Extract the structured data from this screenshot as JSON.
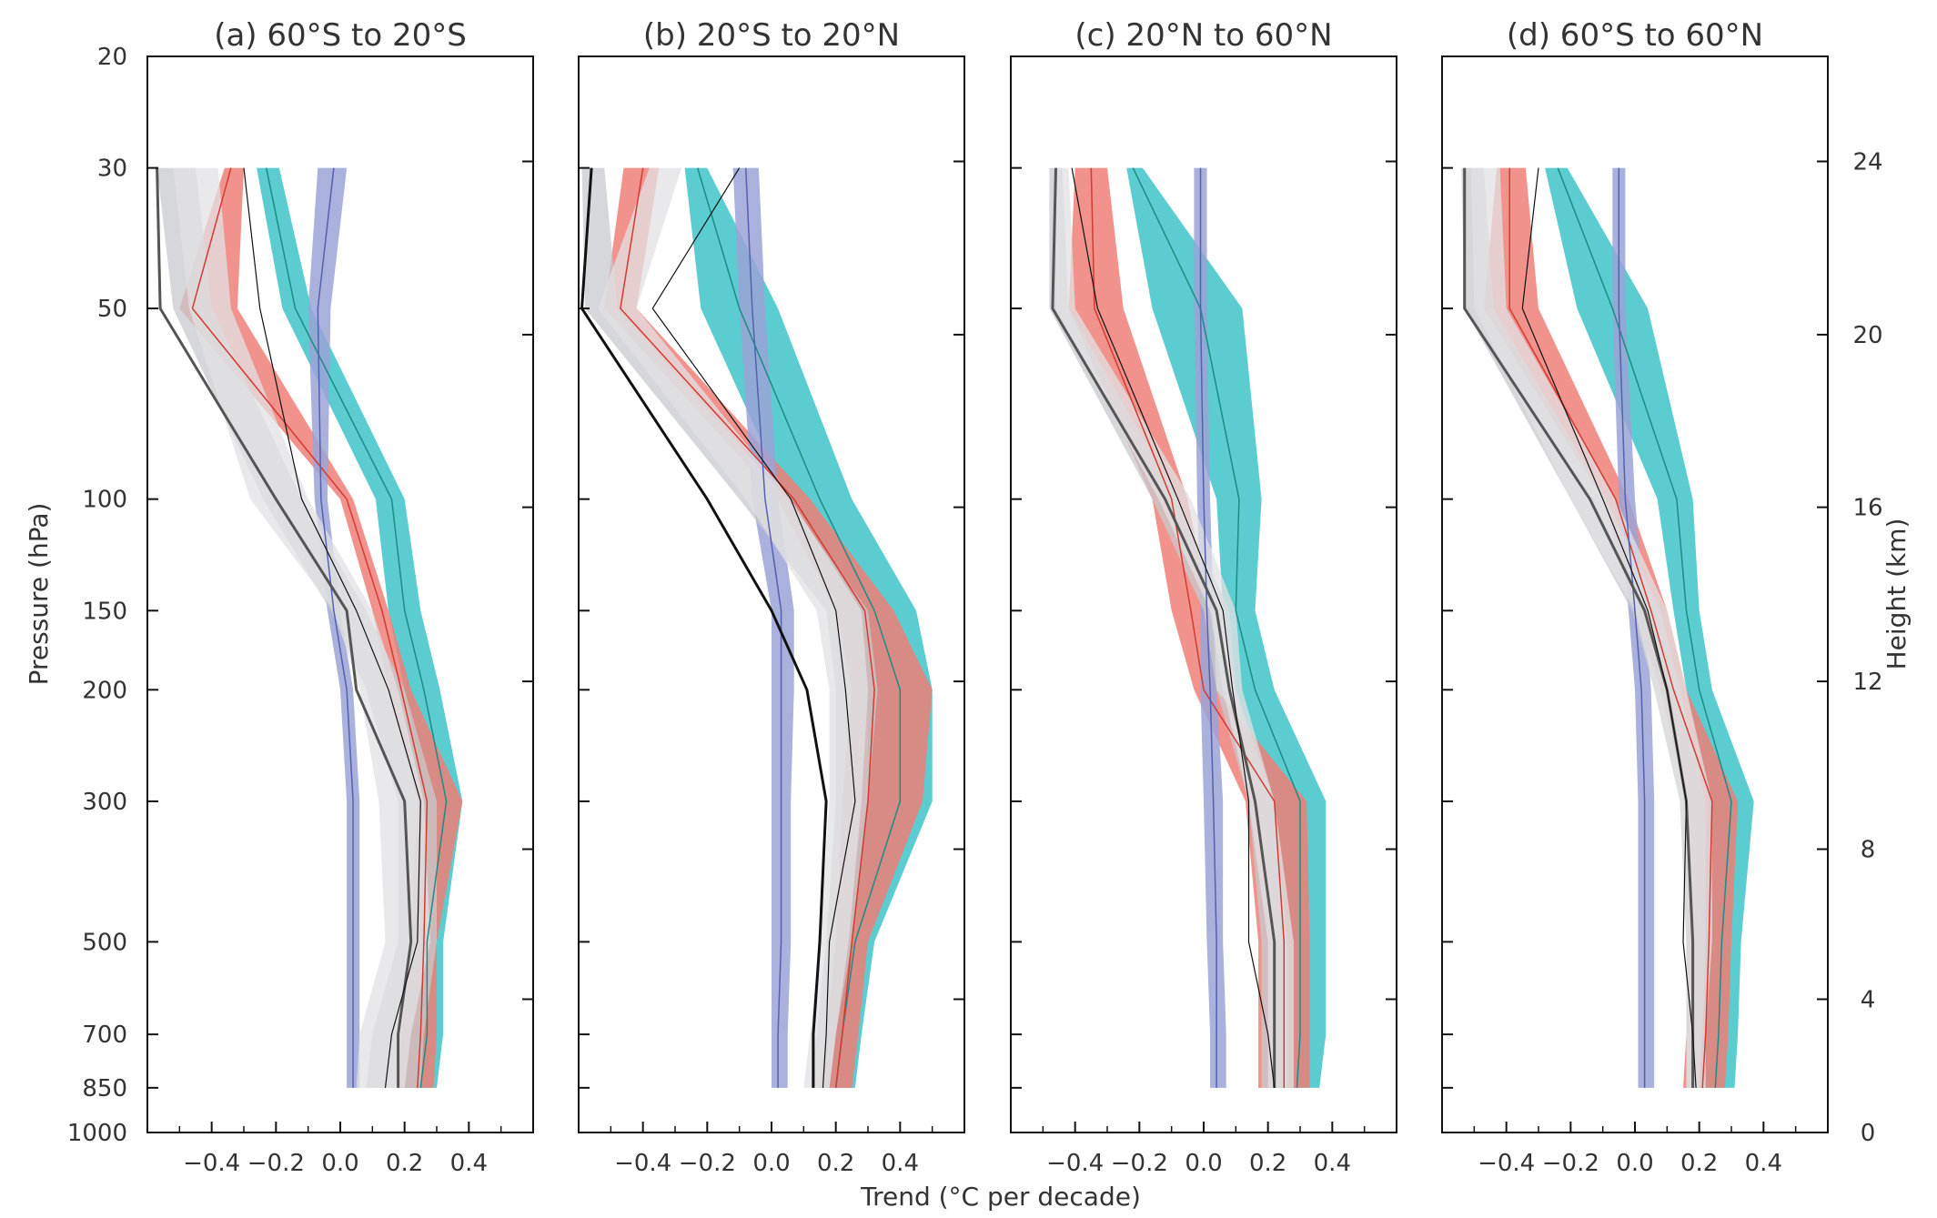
{
  "figure": {
    "xlabel": "Trend (°C per decade)",
    "ylabel": "Pressure (hPa)",
    "y2label": "Height (km)"
  },
  "colors": {
    "teal": "#3ec3c7",
    "teal_line": "#1b8c84",
    "red": "#ee7f78",
    "red_line": "#d23a32",
    "blue": "#9aa3d6",
    "blue_line": "#5561b0",
    "gray_band": "#c8c9cd",
    "light_band": "#e2e2e4",
    "dark_gray": "#555555",
    "black": "#111111"
  },
  "chart_data": [
    {
      "type": "line",
      "title": "(a) 60°S to 20°S",
      "xlabel": "Trend (°C per decade)",
      "ylabel": "Pressure (hPa)",
      "xlim": [
        -0.6,
        0.6
      ],
      "xticks": [
        "−0.4",
        "−0.2",
        "0.0",
        "0.2",
        "0.4"
      ],
      "y_scale": "log",
      "ylim": [
        1000,
        20
      ],
      "yticks": [
        20,
        30,
        50,
        100,
        150,
        200,
        300,
        500,
        700,
        850,
        1000
      ],
      "levels": [
        30,
        50,
        100,
        150,
        200,
        300,
        500,
        700,
        850
      ],
      "bands": [
        {
          "color": "teal",
          "low": [
            -0.26,
            -0.18,
            0.11,
            0.15,
            0.2,
            0.27,
            0.22,
            0.22,
            0.2
          ],
          "high": [
            -0.19,
            -0.09,
            0.2,
            0.25,
            0.31,
            0.38,
            0.32,
            0.32,
            0.3
          ]
        },
        {
          "color": "red",
          "low": [
            -0.36,
            -0.5,
            0.0,
            0.1,
            0.15,
            0.24,
            0.22,
            0.19,
            0.18
          ],
          "high": [
            -0.3,
            -0.32,
            0.04,
            0.15,
            0.22,
            0.38,
            0.3,
            0.3,
            0.29
          ]
        },
        {
          "color": "blue",
          "low": [
            -0.07,
            -0.1,
            -0.08,
            -0.04,
            0.0,
            0.02,
            0.02,
            0.02,
            0.02
          ],
          "high": [
            0.02,
            -0.03,
            -0.04,
            0.0,
            0.04,
            0.06,
            0.06,
            0.06,
            0.06
          ]
        },
        {
          "color": "gray_band",
          "low": [
            -0.57,
            -0.52,
            -0.24,
            -0.03,
            0.08,
            0.18,
            0.18,
            0.1,
            0.08
          ],
          "high": [
            -0.45,
            -0.4,
            -0.12,
            0.08,
            0.2,
            0.3,
            0.3,
            0.26,
            0.25
          ]
        },
        {
          "color": "light_band",
          "low": [
            -0.52,
            -0.47,
            -0.28,
            -0.02,
            0.06,
            0.12,
            0.14,
            0.06,
            0.05
          ],
          "high": [
            -0.38,
            -0.34,
            -0.1,
            0.1,
            0.18,
            0.26,
            0.28,
            0.22,
            0.2
          ]
        }
      ],
      "series": [
        {
          "color": "teal_line",
          "width": 1.5,
          "values": [
            -0.23,
            -0.14,
            0.16,
            0.2,
            0.26,
            0.33,
            0.27,
            0.27,
            0.25
          ]
        },
        {
          "color": "red_line",
          "width": 1.5,
          "values": [
            -0.34,
            -0.46,
            0.02,
            0.13,
            0.19,
            0.27,
            0.26,
            0.25,
            0.24
          ]
        },
        {
          "color": "blue_line",
          "width": 1.5,
          "values": [
            -0.02,
            -0.07,
            -0.06,
            -0.02,
            0.02,
            0.04,
            0.04,
            0.04,
            0.04
          ]
        },
        {
          "color": "dark_gray",
          "width": 3,
          "values": [
            -0.57,
            -0.56,
            -0.2,
            0.02,
            0.05,
            0.2,
            0.22,
            0.18,
            0.18
          ]
        },
        {
          "color": "black",
          "width": 1.2,
          "values": [
            -0.3,
            -0.25,
            -0.12,
            0.05,
            0.15,
            0.25,
            0.24,
            0.16,
            0.14
          ]
        }
      ]
    },
    {
      "type": "line",
      "title": "(b) 20°S to 20°N",
      "xlabel": "Trend (°C per decade)",
      "ylabel": "Pressure (hPa)",
      "xlim": [
        -0.6,
        0.6
      ],
      "xticks": [
        "−0.4",
        "−0.2",
        "0.0",
        "0.2",
        "0.4"
      ],
      "y_scale": "log",
      "ylim": [
        1000,
        20
      ],
      "yticks": [
        20,
        30,
        50,
        100,
        150,
        200,
        300,
        500,
        700,
        850,
        1000
      ],
      "levels": [
        30,
        50,
        100,
        150,
        200,
        300,
        500,
        700,
        850
      ],
      "bands": [
        {
          "color": "teal",
          "low": [
            -0.27,
            -0.22,
            0.05,
            0.2,
            0.3,
            0.3,
            0.2,
            0.17,
            0.15
          ],
          "high": [
            -0.2,
            0.02,
            0.25,
            0.45,
            0.5,
            0.5,
            0.32,
            0.28,
            0.26
          ]
        },
        {
          "color": "red",
          "low": [
            -0.46,
            -0.52,
            0.02,
            0.2,
            0.25,
            0.22,
            0.2,
            0.17,
            0.15
          ],
          "high": [
            -0.35,
            -0.42,
            0.12,
            0.38,
            0.5,
            0.47,
            0.3,
            0.27,
            0.25
          ]
        },
        {
          "color": "blue",
          "low": [
            -0.12,
            -0.1,
            -0.06,
            0.0,
            0.0,
            0.0,
            0.0,
            0.0,
            0.0
          ],
          "high": [
            -0.04,
            -0.02,
            0.02,
            0.07,
            0.07,
            0.06,
            0.06,
            0.05,
            0.05
          ]
        },
        {
          "color": "gray_band",
          "low": [
            -0.59,
            -0.58,
            -0.1,
            0.17,
            0.2,
            0.2,
            0.17,
            0.14,
            0.12
          ],
          "high": [
            -0.52,
            -0.48,
            0.05,
            0.3,
            0.33,
            0.3,
            0.25,
            0.2,
            0.18
          ]
        },
        {
          "color": "light_band",
          "low": [
            -0.38,
            -0.54,
            -0.08,
            0.14,
            0.18,
            0.18,
            0.15,
            0.12,
            0.1
          ],
          "high": [
            -0.28,
            -0.42,
            0.06,
            0.28,
            0.3,
            0.28,
            0.24,
            0.2,
            0.18
          ]
        }
      ],
      "series": [
        {
          "color": "teal_line",
          "width": 1.5,
          "values": [
            -0.23,
            -0.1,
            0.15,
            0.32,
            0.4,
            0.4,
            0.26,
            0.22,
            0.2
          ]
        },
        {
          "color": "red_line",
          "width": 1.5,
          "values": [
            -0.4,
            -0.47,
            0.07,
            0.29,
            0.32,
            0.3,
            0.25,
            0.22,
            0.2
          ]
        },
        {
          "color": "blue_line",
          "width": 1.5,
          "values": [
            -0.08,
            -0.06,
            -0.02,
            0.03,
            0.03,
            0.03,
            0.03,
            0.02,
            0.02
          ]
        },
        {
          "color": "black",
          "width": 3,
          "values": [
            -0.56,
            -0.59,
            -0.2,
            0.0,
            0.11,
            0.17,
            0.15,
            0.13,
            0.13
          ]
        },
        {
          "color": "black",
          "width": 1.2,
          "values": [
            -0.1,
            -0.37,
            0.06,
            0.2,
            0.23,
            0.26,
            0.18,
            0.17,
            0.16
          ]
        }
      ]
    },
    {
      "type": "line",
      "title": "(c) 20°N to 60°N",
      "xlabel": "Trend (°C per decade)",
      "ylabel": "Pressure (hPa)",
      "xlim": [
        -0.6,
        0.6
      ],
      "xticks": [
        "−0.4",
        "−0.2",
        "0.0",
        "0.2",
        "0.4"
      ],
      "y_scale": "log",
      "ylim": [
        1000,
        20
      ],
      "yticks": [
        20,
        30,
        50,
        100,
        150,
        200,
        300,
        500,
        700,
        850,
        1000
      ],
      "levels": [
        30,
        50,
        100,
        150,
        200,
        300,
        500,
        700,
        850
      ],
      "bands": [
        {
          "color": "teal",
          "low": [
            -0.24,
            -0.16,
            0.04,
            0.06,
            0.1,
            0.2,
            0.22,
            0.22,
            0.22
          ],
          "high": [
            -0.19,
            0.12,
            0.18,
            0.16,
            0.22,
            0.38,
            0.38,
            0.38,
            0.36
          ]
        },
        {
          "color": "red",
          "low": [
            -0.4,
            -0.42,
            -0.16,
            -0.1,
            -0.03,
            0.13,
            0.17,
            0.17,
            0.17
          ],
          "high": [
            -0.3,
            -0.25,
            -0.05,
            0.02,
            0.04,
            0.32,
            0.33,
            0.33,
            0.33
          ]
        },
        {
          "color": "blue",
          "low": [
            -0.03,
            -0.03,
            -0.02,
            -0.01,
            -0.01,
            0.0,
            0.01,
            0.02,
            0.02
          ],
          "high": [
            0.01,
            0.01,
            0.02,
            0.03,
            0.04,
            0.06,
            0.06,
            0.07,
            0.07
          ]
        },
        {
          "color": "gray_band",
          "low": [
            -0.48,
            -0.48,
            -0.16,
            0.0,
            0.04,
            0.14,
            0.18,
            0.18,
            0.18
          ],
          "high": [
            -0.44,
            -0.42,
            -0.08,
            0.08,
            0.1,
            0.22,
            0.26,
            0.26,
            0.26
          ]
        },
        {
          "color": "light_band",
          "low": [
            -0.46,
            -0.46,
            -0.14,
            0.02,
            0.06,
            0.14,
            0.2,
            0.2,
            0.2
          ],
          "high": [
            -0.42,
            -0.4,
            -0.04,
            0.1,
            0.12,
            0.22,
            0.28,
            0.28,
            0.28
          ]
        }
      ],
      "series": [
        {
          "color": "teal_line",
          "width": 1.5,
          "values": [
            -0.22,
            -0.01,
            0.11,
            0.1,
            0.16,
            0.3,
            0.3,
            0.3,
            0.29
          ]
        },
        {
          "color": "red_line",
          "width": 1.5,
          "values": [
            -0.35,
            -0.34,
            -0.1,
            -0.04,
            0.0,
            0.22,
            0.25,
            0.25,
            0.25
          ]
        },
        {
          "color": "blue_line",
          "width": 1.5,
          "values": [
            -0.01,
            -0.01,
            0.0,
            0.01,
            0.02,
            0.03,
            0.04,
            0.04,
            0.04
          ]
        },
        {
          "color": "dark_gray",
          "width": 3,
          "values": [
            -0.46,
            -0.47,
            -0.12,
            0.04,
            0.08,
            0.16,
            0.22,
            0.22,
            0.22
          ]
        },
        {
          "color": "black",
          "width": 1.2,
          "values": [
            -0.41,
            -0.33,
            -0.08,
            0.06,
            0.09,
            0.14,
            0.14,
            0.2,
            0.22
          ]
        }
      ]
    },
    {
      "type": "line",
      "title": "(d) 60°S to 60°N",
      "xlabel": "Trend (°C per decade)",
      "ylabel": "Pressure (hPa)",
      "xlim": [
        -0.6,
        0.6
      ],
      "xticks": [
        "−0.4",
        "−0.2",
        "0.0",
        "0.2",
        "0.4"
      ],
      "y_scale": "log",
      "ylim": [
        1000,
        20
      ],
      "yticks": [
        20,
        30,
        50,
        100,
        150,
        200,
        300,
        500,
        700,
        850,
        1000
      ],
      "levels": [
        30,
        50,
        100,
        150,
        200,
        300,
        500,
        700,
        850
      ],
      "bands": [
        {
          "color": "teal",
          "low": [
            -0.28,
            -0.18,
            0.07,
            0.12,
            0.16,
            0.23,
            0.2,
            0.2,
            0.19
          ],
          "high": [
            -0.21,
            0.04,
            0.18,
            0.2,
            0.24,
            0.37,
            0.33,
            0.32,
            0.31
          ]
        },
        {
          "color": "red",
          "low": [
            -0.43,
            -0.47,
            -0.1,
            0.0,
            0.08,
            0.16,
            0.16,
            0.16,
            0.15
          ],
          "high": [
            -0.34,
            -0.3,
            -0.02,
            0.1,
            0.16,
            0.32,
            0.3,
            0.29,
            0.28
          ]
        },
        {
          "color": "blue",
          "low": [
            -0.07,
            -0.07,
            -0.05,
            -0.02,
            0.0,
            0.01,
            0.01,
            0.01,
            0.01
          ],
          "high": [
            -0.03,
            -0.03,
            0.0,
            0.03,
            0.05,
            0.06,
            0.06,
            0.06,
            0.06
          ]
        },
        {
          "color": "gray_band",
          "low": [
            -0.54,
            -0.53,
            -0.2,
            -0.01,
            0.06,
            0.14,
            0.16,
            0.16,
            0.16
          ],
          "high": [
            -0.47,
            -0.44,
            -0.09,
            0.08,
            0.14,
            0.22,
            0.22,
            0.21,
            0.2
          ]
        },
        {
          "color": "light_band",
          "low": [
            -0.51,
            -0.5,
            -0.2,
            0.0,
            0.06,
            0.14,
            0.16,
            0.16,
            0.16
          ],
          "high": [
            -0.42,
            -0.4,
            -0.06,
            0.1,
            0.16,
            0.24,
            0.24,
            0.22,
            0.22
          ]
        }
      ],
      "series": [
        {
          "color": "teal_line",
          "width": 1.5,
          "values": [
            -0.24,
            -0.07,
            0.13,
            0.16,
            0.2,
            0.3,
            0.27,
            0.26,
            0.25
          ]
        },
        {
          "color": "red_line",
          "width": 1.5,
          "values": [
            -0.39,
            -0.39,
            -0.06,
            0.05,
            0.12,
            0.24,
            0.23,
            0.22,
            0.21
          ]
        },
        {
          "color": "blue_line",
          "width": 1.5,
          "values": [
            -0.05,
            -0.05,
            -0.03,
            0.0,
            0.02,
            0.03,
            0.03,
            0.03,
            0.03
          ]
        },
        {
          "color": "dark_gray",
          "width": 3,
          "values": [
            -0.53,
            -0.53,
            -0.14,
            0.03,
            0.1,
            0.16,
            0.18,
            0.18,
            0.18
          ]
        },
        {
          "color": "black",
          "width": 1.2,
          "values": [
            -0.3,
            -0.35,
            -0.1,
            0.04,
            0.1,
            0.16,
            0.15,
            0.18,
            0.19
          ]
        }
      ]
    }
  ],
  "height_axis": {
    "label": "Height (km)",
    "ticks": [
      {
        "label": "0",
        "pressure": 1000
      },
      {
        "label": "4",
        "pressure": 616
      },
      {
        "label": "8",
        "pressure": 357
      },
      {
        "label": "12",
        "pressure": 194
      },
      {
        "label": "16",
        "pressure": 103
      },
      {
        "label": "20",
        "pressure": 55
      },
      {
        "label": "24",
        "pressure": 29.3
      }
    ]
  }
}
